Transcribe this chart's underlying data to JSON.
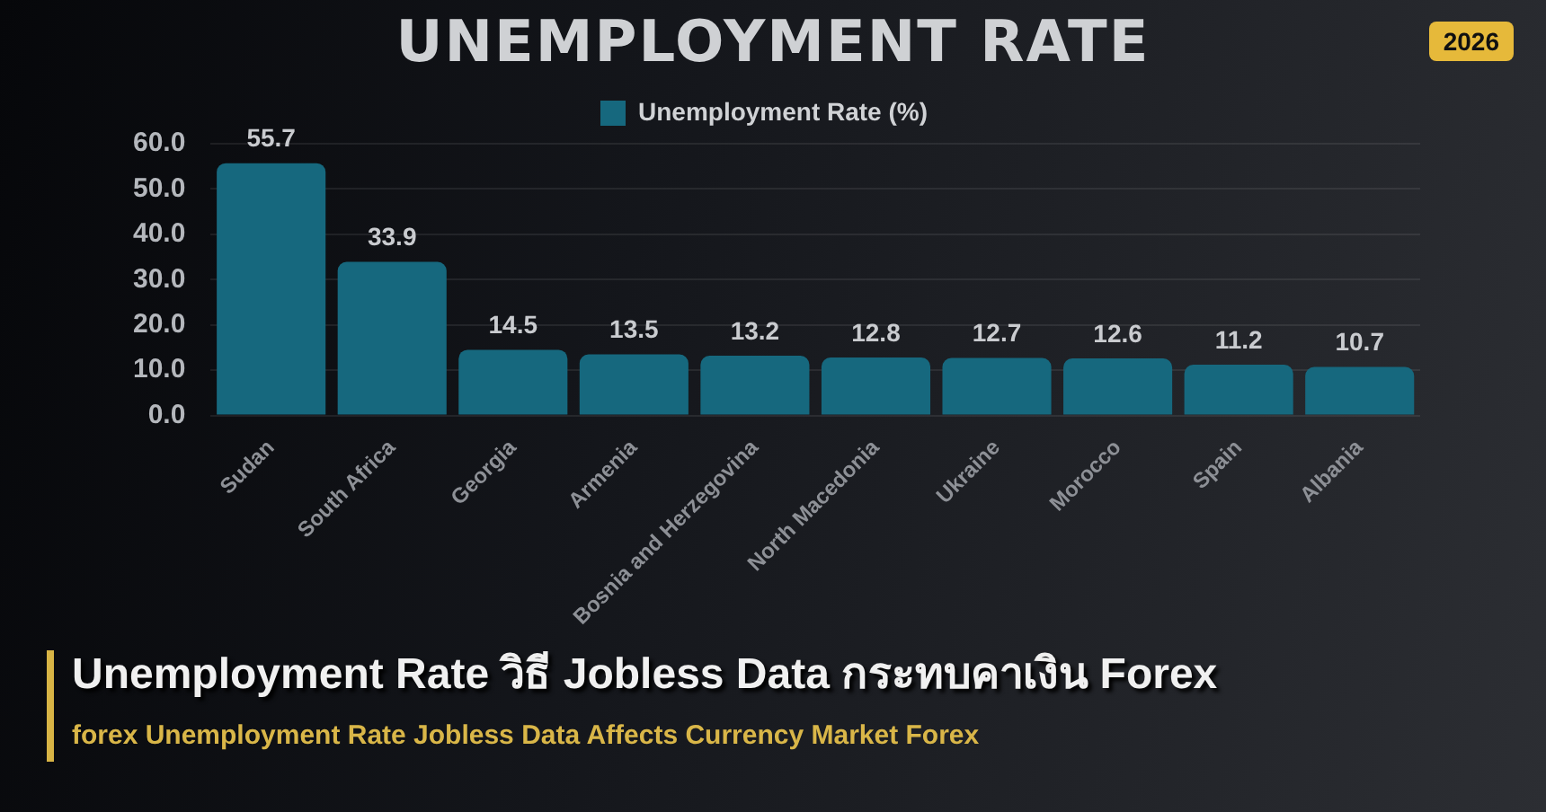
{
  "chart_data": {
    "type": "bar",
    "title": "UNEMPLOYMENT RATE",
    "subtitle": "Unemployment Rate วิธี Jobless Data กระทบคาเงิน Forex",
    "annotations": [
      "2026",
      "forex Unemployment Rate Jobless Data Affects Currency Market Forex"
    ],
    "categories": [
      "Sudan",
      "South Africa",
      "Georgia",
      "Armenia",
      "Bosnia and Herzegovina",
      "North Macedonia",
      "Ukraine",
      "Morocco",
      "Spain",
      "Albania"
    ],
    "series": [
      {
        "name": "Unemployment Rate (%)",
        "color": "#16687e",
        "values": [
          55.7,
          33.9,
          14.5,
          13.5,
          13.2,
          12.8,
          12.7,
          12.6,
          11.2,
          10.7
        ]
      }
    ],
    "ylim": [
      0,
      60
    ],
    "yticks": [
      {
        "value": 0,
        "label": "0.0"
      },
      {
        "value": 10,
        "label": "10.0"
      },
      {
        "value": 20,
        "label": "20.0"
      },
      {
        "value": 30,
        "label": "30.0"
      },
      {
        "value": 40,
        "label": "40.0"
      },
      {
        "value": 50,
        "label": "50.0"
      },
      {
        "value": 60,
        "label": "60.0"
      }
    ],
    "grid": "y",
    "legend": "top",
    "data_labels": true
  }
}
